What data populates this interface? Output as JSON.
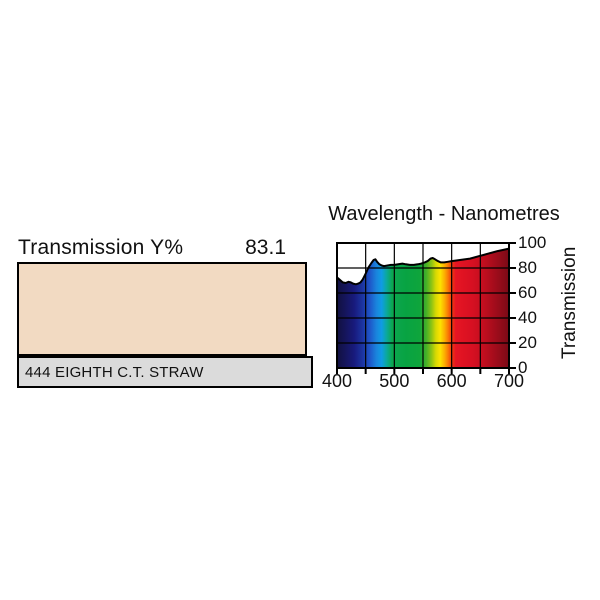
{
  "left_panel": {
    "transmission_label": "Transmission Y%",
    "transmission_value": "83.1",
    "swatch_color": "#f2dac2",
    "filter_name": "444 EIGHTH C.T. STRAW",
    "name_bar_color": "#dbdbdb"
  },
  "chart_data": {
    "type": "area",
    "title": "Wavelength - Nanometres",
    "ylabel": "Transmission",
    "xlim": [
      400,
      700
    ],
    "ylim": [
      0,
      100
    ],
    "x_ticks": [
      400,
      450,
      500,
      550,
      600,
      650,
      700
    ],
    "x_labeled_ticks": [
      400,
      500,
      600,
      700
    ],
    "x_tick_labels": [
      "400",
      "500",
      "600",
      "700"
    ],
    "y_ticks": [
      0,
      20,
      40,
      60,
      80,
      100
    ],
    "y_tick_labels": [
      "0",
      "20",
      "40",
      "60",
      "80",
      "100"
    ],
    "grid": true,
    "legend": "none",
    "series": [
      {
        "name": "transmission",
        "x": [
          400,
          405,
          410,
          415,
          420,
          424,
          428,
          433,
          437,
          441,
          445,
          450,
          455,
          460,
          464,
          467,
          470,
          474,
          478,
          482,
          488,
          494,
          500,
          507,
          514,
          520,
          527,
          534,
          541,
          547,
          553,
          558,
          563,
          567,
          571,
          576,
          581,
          587,
          593,
          600,
          608,
          616,
          624,
          632,
          640,
          648,
          656,
          664,
          672,
          680,
          690,
          700
        ],
        "y": [
          72.5,
          70.5,
          68.5,
          68,
          69,
          68.5,
          67.5,
          67,
          67.5,
          68.5,
          71,
          75.5,
          80.5,
          84,
          86.5,
          87,
          85,
          83,
          82,
          81.5,
          82,
          82.5,
          82.5,
          83,
          83.5,
          83,
          82.5,
          82.5,
          83,
          83.5,
          84.5,
          85.5,
          87.5,
          88,
          87,
          85.5,
          84.5,
          84.5,
          85,
          85.5,
          86,
          86.5,
          87,
          87.5,
          88.5,
          89.5,
          90.5,
          91.5,
          92.5,
          93.5,
          94.5,
          95.5
        ]
      }
    ],
    "line_color": "#000000",
    "spectrum_gradient": [
      {
        "offset": 0.0,
        "color": "#11103f"
      },
      {
        "offset": 0.05,
        "color": "#15155c"
      },
      {
        "offset": 0.1,
        "color": "#181a7d"
      },
      {
        "offset": 0.15,
        "color": "#1c35a2"
      },
      {
        "offset": 0.19,
        "color": "#1e55c8"
      },
      {
        "offset": 0.23,
        "color": "#1a85dd"
      },
      {
        "offset": 0.26,
        "color": "#0f9ce4"
      },
      {
        "offset": 0.29,
        "color": "#0ba998"
      },
      {
        "offset": 0.32,
        "color": "#0ca750"
      },
      {
        "offset": 0.4,
        "color": "#08a343"
      },
      {
        "offset": 0.48,
        "color": "#0ea53c"
      },
      {
        "offset": 0.52,
        "color": "#47b127"
      },
      {
        "offset": 0.55,
        "color": "#8ec414"
      },
      {
        "offset": 0.575,
        "color": "#d8d903"
      },
      {
        "offset": 0.6,
        "color": "#fce300"
      },
      {
        "offset": 0.625,
        "color": "#fcaf02"
      },
      {
        "offset": 0.645,
        "color": "#fa7b05"
      },
      {
        "offset": 0.665,
        "color": "#f2400d"
      },
      {
        "offset": 0.69,
        "color": "#e61523"
      },
      {
        "offset": 0.78,
        "color": "#d81022"
      },
      {
        "offset": 0.85,
        "color": "#c30e1f"
      },
      {
        "offset": 0.93,
        "color": "#9c0c1b"
      },
      {
        "offset": 1.0,
        "color": "#7a0a16"
      }
    ]
  }
}
